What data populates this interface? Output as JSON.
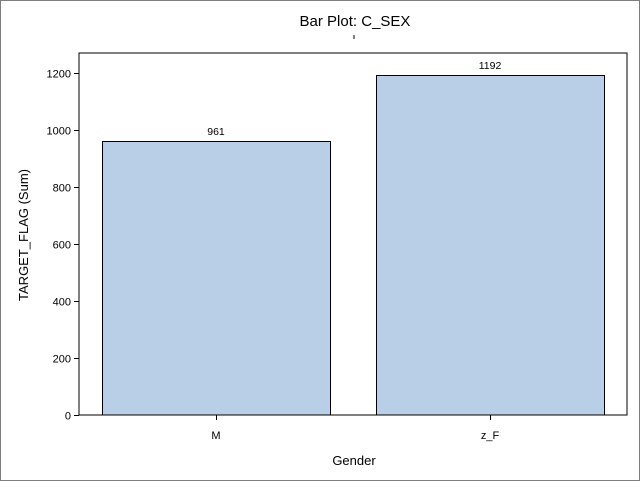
{
  "chart_data": {
    "type": "bar",
    "title": "Bar Plot: C_SEX",
    "xlabel": "Gender",
    "ylabel": "TARGET_FLAG (Sum)",
    "categories": [
      "M",
      "z_F"
    ],
    "values": [
      961,
      1192
    ],
    "data_labels": [
      "961",
      "1192"
    ],
    "ylim": [
      0,
      1270
    ],
    "yticks": [
      0,
      200,
      400,
      600,
      800,
      1000,
      1200
    ],
    "grid": false,
    "legend": "none",
    "bar_color": "#b9cfe8",
    "bar_edge_color": "#000000"
  }
}
